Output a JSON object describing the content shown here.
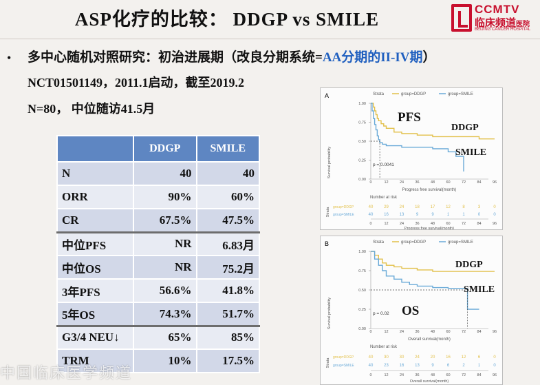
{
  "title": "ASP化疗的比较：  DDGP vs SMILE",
  "logo": {
    "top": "CCMTV",
    "cn": "临床频道",
    "cn_small": "医院",
    "en": "BEIJING CANCER HOSPITAL"
  },
  "bullet_points": {
    "bullet": "•",
    "line1_pre": "多中心随机对照研究：初治进展期（改良分期系统=",
    "line1_hl": "AA分期的II-IV期",
    "line1_post": "）",
    "line2": "NCT01501149，2011.1启动，截至2019.2",
    "line3": "N=80，  中位随访41.5月"
  },
  "table": {
    "headers": [
      "",
      "DDGP",
      "SMILE"
    ],
    "rows": [
      {
        "label": "N",
        "ddgp": "40",
        "smile": "40"
      },
      {
        "label": "ORR",
        "ddgp": "90%",
        "smile": "60%"
      },
      {
        "label": "CR",
        "ddgp": "67.5%",
        "smile": "47.5%"
      },
      {
        "label": "中位PFS",
        "ddgp": "NR",
        "smile": "6.83月"
      },
      {
        "label": "中位OS",
        "ddgp": "NR",
        "smile": "75.2月"
      },
      {
        "label": "3年PFS",
        "ddgp": "56.6%",
        "smile": "41.8%"
      },
      {
        "label": "5年OS",
        "ddgp": "74.3%",
        "smile": "51.7%"
      },
      {
        "label": "G3/4 NEU↓",
        "ddgp": "65%",
        "smile": "85%"
      },
      {
        "label": "TRM",
        "ddgp": "10%",
        "smile": "17.5%"
      }
    ]
  },
  "plots": {
    "common": {
      "strata_label": "Strata",
      "legend_ddgp": "group=DDGP",
      "legend_smile": "group=SMILE",
      "ylabel": "Survival probability",
      "yticks": [
        "1.00",
        "0.75",
        "0.50",
        "0.25",
        "0.00"
      ],
      "xticks": [
        "0",
        "12",
        "24",
        "36",
        "48",
        "60",
        "72",
        "84",
        "96"
      ],
      "risk_title": "Number at risk",
      "strata_axis": "Strata",
      "ddgp_color": "#e2c04a",
      "smile_color": "#6aaad8"
    },
    "A": {
      "letter": "A",
      "big_label": "PFS",
      "ddgp_label": "DDGP",
      "smile_label": "SMILE",
      "pvalue": "p = 0.0041",
      "xlabel": "Progress free survival(month)",
      "risk_ddgp": [
        "40",
        "29",
        "24",
        "18",
        "17",
        "12",
        "8",
        "3",
        "0"
      ],
      "risk_smile": [
        "40",
        "16",
        "13",
        "9",
        "9",
        "1",
        "1",
        "0",
        "0"
      ]
    },
    "B": {
      "letter": "B",
      "big_label": "OS",
      "ddgp_label": "DDGP",
      "smile_label": "SMILE",
      "pvalue": "p = 0.02",
      "xlabel": "Overall survival(month)",
      "risk_ddgp": [
        "40",
        "30",
        "30",
        "24",
        "20",
        "16",
        "12",
        "6",
        "0"
      ],
      "risk_smile": [
        "40",
        "23",
        "16",
        "13",
        "9",
        "6",
        "2",
        "1",
        "0"
      ]
    }
  },
  "watermark": "中国临床医学频道"
}
